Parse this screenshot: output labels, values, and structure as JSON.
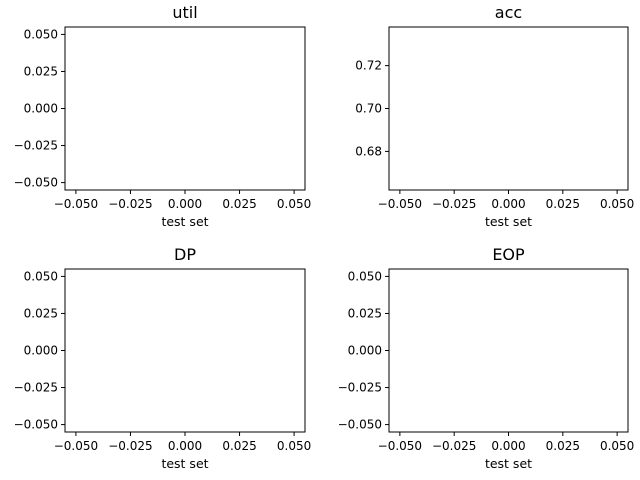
{
  "chart_data": [
    {
      "type": "line",
      "title": "util",
      "xlabel": "test set",
      "ylabel": "",
      "xlim": [
        -0.055,
        0.055
      ],
      "ylim": [
        -0.055,
        0.055
      ],
      "xticks": [
        -0.05,
        -0.025,
        0.0,
        0.025,
        0.05
      ],
      "xtick_labels": [
        "−0.050",
        "−0.025",
        "0.000",
        "0.025",
        "0.050"
      ],
      "yticks": [
        -0.05,
        -0.025,
        0.0,
        0.025,
        0.05
      ],
      "ytick_labels": [
        "−0.050",
        "−0.025",
        "0.000",
        "0.025",
        "0.050"
      ],
      "series": [],
      "grid": false
    },
    {
      "type": "line",
      "title": "acc",
      "xlabel": "test set",
      "ylabel": "",
      "xlim": [
        -0.055,
        0.055
      ],
      "ylim": [
        0.662,
        0.738
      ],
      "xticks": [
        -0.05,
        -0.025,
        0.0,
        0.025,
        0.05
      ],
      "xtick_labels": [
        "−0.050",
        "−0.025",
        "0.000",
        "0.025",
        "0.050"
      ],
      "yticks": [
        0.68,
        0.7,
        0.72
      ],
      "ytick_labels": [
        "0.68",
        "0.70",
        "0.72"
      ],
      "series": [],
      "grid": false
    },
    {
      "type": "line",
      "title": "DP",
      "xlabel": "test set",
      "ylabel": "",
      "xlim": [
        -0.055,
        0.055
      ],
      "ylim": [
        -0.055,
        0.055
      ],
      "xticks": [
        -0.05,
        -0.025,
        0.0,
        0.025,
        0.05
      ],
      "xtick_labels": [
        "−0.050",
        "−0.025",
        "0.000",
        "0.025",
        "0.050"
      ],
      "yticks": [
        -0.05,
        -0.025,
        0.0,
        0.025,
        0.05
      ],
      "ytick_labels": [
        "−0.050",
        "−0.025",
        "0.000",
        "0.025",
        "0.050"
      ],
      "series": [],
      "grid": false
    },
    {
      "type": "line",
      "title": "EOP",
      "xlabel": "test set",
      "ylabel": "",
      "xlim": [
        -0.055,
        0.055
      ],
      "ylim": [
        -0.055,
        0.055
      ],
      "xticks": [
        -0.05,
        -0.025,
        0.0,
        0.025,
        0.05
      ],
      "xtick_labels": [
        "−0.050",
        "−0.025",
        "0.000",
        "0.025",
        "0.050"
      ],
      "yticks": [
        -0.05,
        -0.025,
        0.0,
        0.025,
        0.05
      ],
      "ytick_labels": [
        "−0.050",
        "−0.025",
        "0.000",
        "0.025",
        "0.050"
      ],
      "series": [],
      "grid": false
    }
  ]
}
